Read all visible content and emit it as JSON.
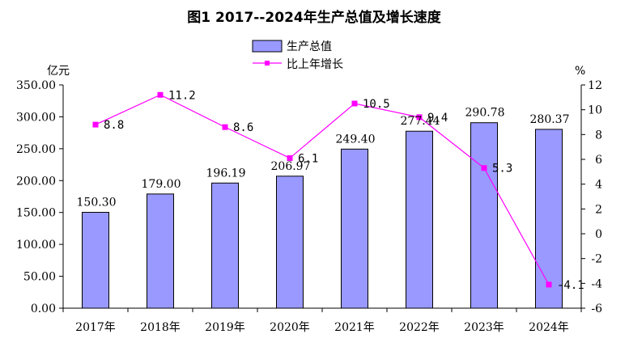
{
  "chart_data": {
    "type": "bar+line",
    "title": "图1  2017--2024年生产总值及增长速度",
    "categories": [
      "2017年",
      "2018年",
      "2019年",
      "2020年",
      "2021年",
      "2022年",
      "2023年",
      "2024年"
    ],
    "series": [
      {
        "name": "生产总值",
        "type": "bar",
        "axis": "left",
        "values": [
          150.3,
          179.0,
          196.19,
          206.97,
          249.4,
          277.44,
          290.78,
          280.37
        ],
        "labels": [
          "150.30",
          "179.00",
          "196.19",
          "206.97",
          "249.40",
          "277.44",
          "290.78",
          "280.37"
        ],
        "color": "#9999ff"
      },
      {
        "name": "比上年增长",
        "type": "line",
        "axis": "right",
        "values": [
          8.8,
          11.2,
          8.6,
          6.1,
          10.5,
          9.4,
          5.3,
          -4.1
        ],
        "labels": [
          "8.8",
          "11.2",
          "8.6",
          "6.1",
          "10.5",
          "9.4",
          "5.3",
          "-4.1"
        ],
        "color": "#ff00ff"
      }
    ],
    "y_left": {
      "unit": "亿元",
      "range": [
        0,
        350
      ],
      "ticks": [
        "0.00",
        "50.00",
        "100.00",
        "150.00",
        "200.00",
        "250.00",
        "300.00",
        "350.00"
      ]
    },
    "y_right": {
      "unit": "%",
      "range": [
        -6,
        12
      ],
      "ticks": [
        "-6",
        "-4",
        "-2",
        "0",
        "2",
        "4",
        "6",
        "8",
        "10",
        "12"
      ]
    },
    "legend_position": "top-center",
    "grid": false
  }
}
